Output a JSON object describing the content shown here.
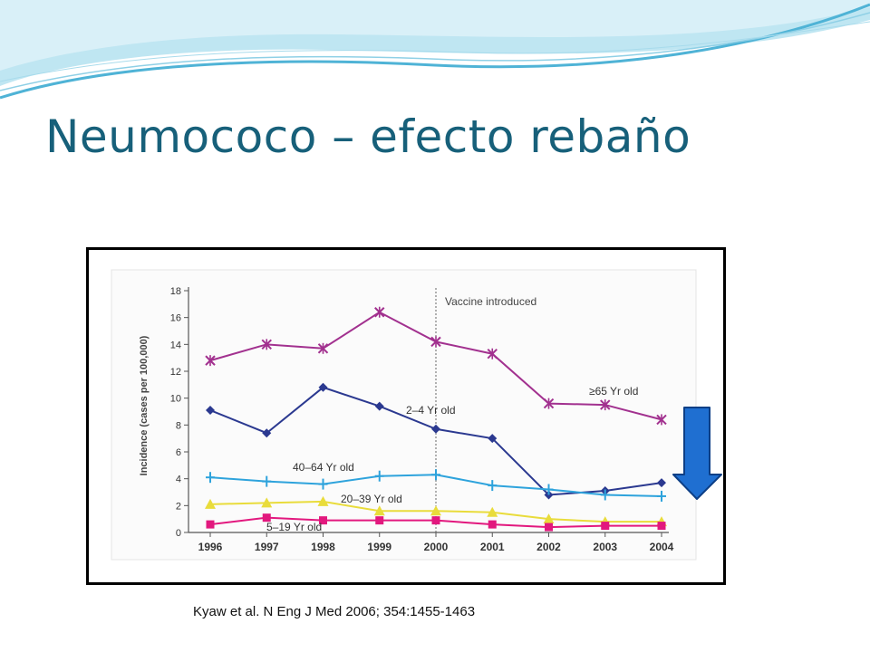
{
  "slide": {
    "title": "Neumococo – efecto rebaño",
    "citation": "Kyaw et al.  N Eng J Med 2006; 354:1455-1463"
  },
  "colors": {
    "title": "#17607a",
    "banner_light": "#bfe6f2",
    "banner_dark": "#4fb3d6",
    "arrow_fill": "#1f6fd1",
    "arrow_stroke": "#0d3f86",
    "axis": "#555555"
  },
  "chart_data": {
    "type": "line",
    "ylabel": "Incidence (cases per 100,000)",
    "xlabel": "",
    "x": [
      "1996",
      "1997",
      "1998",
      "1999",
      "2000",
      "2001",
      "2002",
      "2003",
      "2004"
    ],
    "y_ticks": [
      "0",
      "2",
      "4",
      "6",
      "8",
      "10",
      "12",
      "14",
      "16",
      "18"
    ],
    "ylim": [
      0,
      18
    ],
    "annotation": {
      "label": "Vaccine introduced",
      "x": "2000"
    },
    "series": [
      {
        "name": "≥65 Yr old",
        "color": "#a2318f",
        "marker": "star",
        "values": [
          12.8,
          14.0,
          13.7,
          16.4,
          14.2,
          13.3,
          9.6,
          9.5,
          8.4
        ]
      },
      {
        "name": "2–4 Yr old",
        "color": "#2b3990",
        "marker": "diamond",
        "values": [
          9.1,
          7.4,
          10.8,
          9.4,
          7.7,
          7.0,
          2.8,
          3.1,
          3.7
        ]
      },
      {
        "name": "40–64 Yr old",
        "color": "#2ea3dc",
        "marker": "plus",
        "values": [
          4.1,
          3.8,
          3.6,
          4.2,
          4.3,
          3.5,
          3.2,
          2.8,
          2.7
        ]
      },
      {
        "name": "20–39 Yr old",
        "color": "#e9dc3b",
        "marker": "triangle",
        "values": [
          2.1,
          2.2,
          2.3,
          1.6,
          1.6,
          1.5,
          1.0,
          0.8,
          0.8
        ]
      },
      {
        "name": "5–19 Yr old",
        "color": "#e2187e",
        "marker": "square",
        "values": [
          0.6,
          1.1,
          0.9,
          0.9,
          0.9,
          0.6,
          0.4,
          0.5,
          0.5
        ]
      }
    ]
  }
}
